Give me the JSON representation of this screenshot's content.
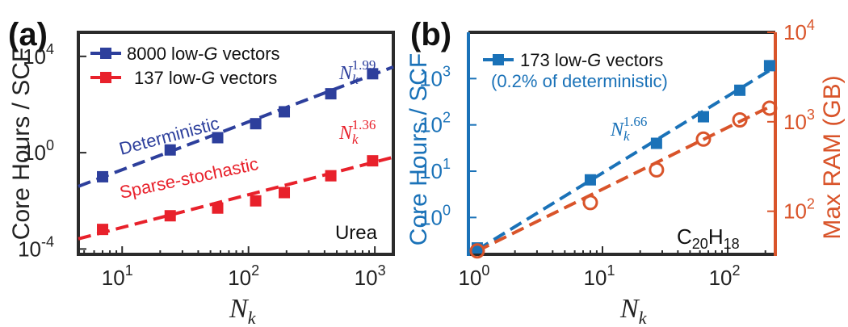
{
  "colors": {
    "deterministic": "#2d3f9c",
    "sparse": "#e8212b",
    "core_hours_b": "#1a72b8",
    "ram_b": "#d9542a",
    "axis": "#2b2b2b"
  },
  "chart_data": [
    {
      "panel_label": "(a)",
      "type": "line",
      "xscale": "log",
      "yscale": "log",
      "xlabel_base": "N",
      "xlabel_sub": "k",
      "ylabel": "Core Hours / SCF",
      "xlim": [
        4.5,
        1400
      ],
      "ylim": [
        6e-05,
        100000
      ],
      "x_ticks": [
        {
          "pos": 10,
          "base": "10",
          "exp": "1"
        },
        {
          "pos": 100,
          "base": "10",
          "exp": "2"
        },
        {
          "pos": 1000,
          "base": "10",
          "exp": "3"
        }
      ],
      "y_ticks": [
        {
          "pos": 0.0001,
          "base": "10",
          "exp": "-4"
        },
        {
          "pos": 1,
          "base": "10",
          "exp": "0"
        },
        {
          "pos": 10000,
          "base": "10",
          "exp": "4"
        }
      ],
      "corner_label": "Urea",
      "series": [
        {
          "name": "8000 low-G vectors",
          "legend_prefix": "8000 low-",
          "legend_italic": "G",
          "legend_suffix": " vectors",
          "curve_label": "Deterministic",
          "exponent_label": "1.99",
          "marker": "square",
          "color_key": "deterministic",
          "x": [
            7,
            24,
            57,
            114,
            192,
            448,
            960
          ],
          "y": [
            0.1,
            1.3,
            4.2,
            16,
            50,
            280,
            1900
          ],
          "fit": {
            "coef": 0.002,
            "power": 1.99
          }
        },
        {
          "name": "137 low-G vectors",
          "legend_prefix": "137 low-",
          "legend_italic": "G",
          "legend_suffix": " vectors",
          "curve_label": "Sparse-stochastic",
          "exponent_label": "1.36",
          "marker": "square",
          "color_key": "sparse",
          "x": [
            7,
            24,
            57,
            114,
            192,
            448,
            960
          ],
          "y": [
            0.00065,
            0.0024,
            0.005,
            0.01,
            0.022,
            0.11,
            0.46
          ],
          "fit": {
            "coef": 3.42e-05,
            "power": 1.36
          }
        }
      ]
    },
    {
      "panel_label": "(b)",
      "type": "line",
      "xscale": "log",
      "yscale": "log",
      "xlabel_base": "N",
      "xlabel_sub": "k",
      "ylabel_left": "Core Hours / SCF",
      "ylabel_right": "Max RAM (GB)",
      "formula_sub": "20",
      "formula_sub2": "18",
      "formula_c": "C",
      "formula_h": "H",
      "xlim": [
        0.85,
        240
      ],
      "ylim_left": [
        0.16,
        10000
      ],
      "ylim_right": [
        33,
        10000
      ],
      "x_ticks": [
        {
          "pos": 1,
          "base": "10",
          "exp": "0"
        },
        {
          "pos": 10,
          "base": "10",
          "exp": "1"
        },
        {
          "pos": 100,
          "base": "10",
          "exp": "2"
        }
      ],
      "y_ticks_left": [
        {
          "pos": 1,
          "base": "10",
          "exp": "0"
        },
        {
          "pos": 10,
          "base": "10",
          "exp": "1"
        },
        {
          "pos": 100,
          "base": "10",
          "exp": "2"
        },
        {
          "pos": 1000,
          "base": "10",
          "exp": "3"
        }
      ],
      "y_ticks_right": [
        {
          "pos": 100,
          "base": "10",
          "exp": "2"
        },
        {
          "pos": 1000,
          "base": "10",
          "exp": "3"
        },
        {
          "pos": 10000,
          "base": "10",
          "exp": "4"
        }
      ],
      "legend_prefix": "173 low-",
      "legend_italic": "G",
      "legend_suffix": " vectors",
      "legend_note": "(0.2% of deterministic)",
      "series": [
        {
          "name": "173 low-G vectors",
          "axis": "left",
          "exponent_label": "1.66",
          "marker": "square",
          "color_key": "core_hours_b",
          "x": [
            1,
            8,
            27,
            64,
            125,
            216
          ],
          "y": [
            0.22,
            6.5,
            40,
            150,
            560,
            1900
          ],
          "fit": {
            "coef": 0.2,
            "power": 1.66
          }
        },
        {
          "axis": "right",
          "marker": "circle",
          "color_key": "ram_b",
          "x": [
            1,
            8,
            27,
            64,
            125,
            216
          ],
          "y": [
            36,
            125,
            290,
            640,
            1050,
            1420
          ],
          "fit": {
            "coef": 36,
            "power": 0.69
          }
        }
      ]
    }
  ]
}
